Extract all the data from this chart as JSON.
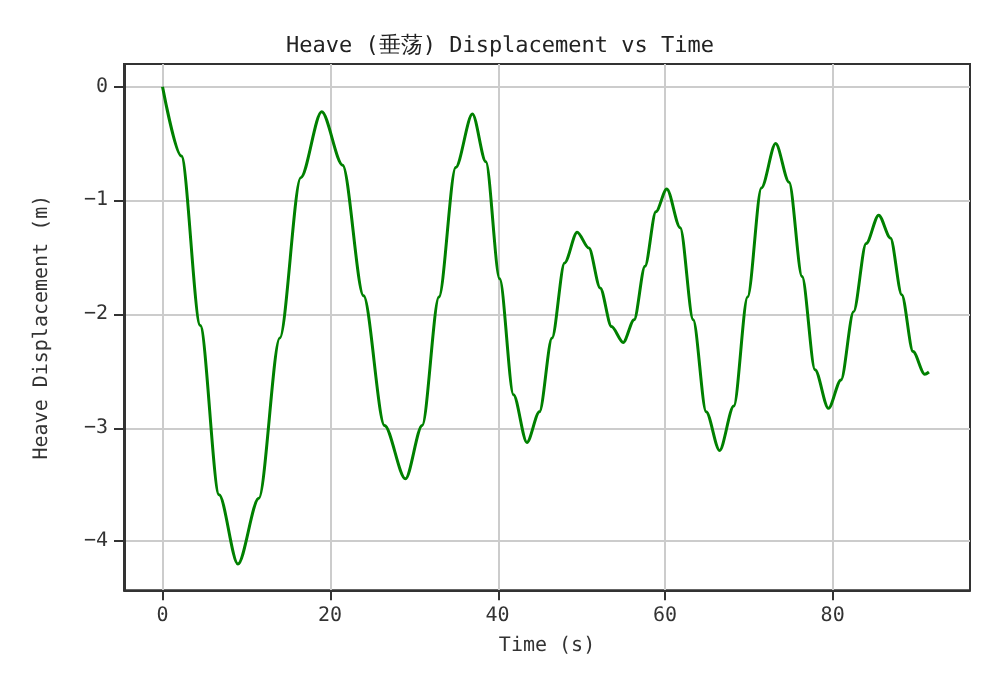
{
  "chart_data": {
    "type": "line",
    "title": "Heave (垂荡) Displacement vs Time",
    "xlabel": "Time (s)",
    "ylabel": "Heave Displacement (m)",
    "xlim": [
      -4.6,
      96.4
    ],
    "ylim": [
      -4.43,
      0.2
    ],
    "xticks": [
      0,
      20,
      40,
      60,
      80
    ],
    "yticks": [
      0,
      {
        "value": -1,
        "label": "−1"
      },
      {
        "value": -2,
        "label": "−2"
      },
      {
        "value": -3,
        "label": "−3"
      },
      {
        "value": -4,
        "label": "−4"
      }
    ],
    "grid": true,
    "marker": "none",
    "line_style": "solid",
    "series": [
      {
        "color": "#008000",
        "x": [
          0,
          2.25,
          4.5,
          6.75,
          9,
          11.5,
          14,
          16.5,
          19,
          21.5,
          24,
          26.5,
          29,
          31,
          33,
          35,
          37,
          38.6,
          40.25,
          41.9,
          43.5,
          45,
          46.5,
          48,
          49.5,
          50.9,
          52.25,
          53.6,
          55,
          56.3,
          57.6,
          58.9,
          60.2,
          61.8,
          63.35,
          64.9,
          66.5,
          68.2,
          69.85,
          71.5,
          73.2,
          74.8,
          76.35,
          77.9,
          79.5,
          81,
          82.5,
          84,
          85.5,
          86.9,
          88.25,
          89.6,
          91,
          91.5
        ],
        "values": [
          0,
          -0.61,
          -2.1,
          -3.59,
          -4.2,
          -3.62,
          -2.21,
          -0.8,
          -0.22,
          -0.69,
          -1.84,
          -2.98,
          -3.45,
          -2.98,
          -1.85,
          -0.71,
          -0.24,
          -0.66,
          -1.69,
          -2.71,
          -3.13,
          -2.86,
          -2.21,
          -1.55,
          -1.28,
          -1.42,
          -1.77,
          -2.11,
          -2.25,
          -2.05,
          -1.58,
          -1.1,
          -0.9,
          -1.24,
          -2.05,
          -2.86,
          -3.2,
          -2.81,
          -1.85,
          -0.89,
          -0.5,
          -0.84,
          -1.67,
          -2.49,
          -2.83,
          -2.58,
          -1.98,
          -1.38,
          -1.13,
          -1.33,
          -1.83,
          -2.33,
          -2.53,
          -2.51
        ]
      }
    ]
  }
}
